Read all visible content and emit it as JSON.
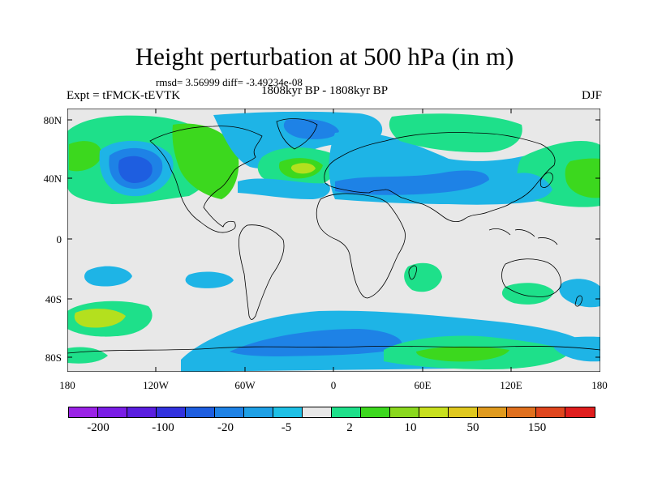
{
  "title": "Height perturbation at 500 hPa (in m)",
  "stats": "rmsd= 3.56999 diff= -3.49234e-08",
  "period": "1808kyr BP - 1808kyr BP",
  "experiment": "Expt = tFMCK-tEVTK",
  "season": "DJF",
  "lat_labels": [
    "80N",
    "40N",
    "0",
    "40S",
    "80S"
  ],
  "lon_labels": [
    "180",
    "120W",
    "60W",
    "0",
    "60E",
    "120E",
    "180"
  ],
  "colorbar": {
    "colors": [
      "#9a22e6",
      "#7a1de6",
      "#5a1ee0",
      "#3232df",
      "#1e5ee0",
      "#1e82e6",
      "#1ea0e6",
      "#1ec0e6",
      "#e8e8e8",
      "#1ee08a",
      "#3cd81e",
      "#8ad81e",
      "#c8e01e",
      "#e0c81e",
      "#e09a1e",
      "#e0701e",
      "#e0461e",
      "#e01e1e"
    ],
    "labels": [
      "-200",
      "-100",
      "-20",
      "-5",
      "2",
      "10",
      "50",
      "150"
    ]
  },
  "colors": {
    "background": "#e8e8e8",
    "blue_dark": "#1e5ee0",
    "blue_mid": "#1e82e6",
    "blue_light": "#1eb4e6",
    "green": "#1ee08a",
    "green_bright": "#3cd81e",
    "yellow_green": "#b4e01e"
  }
}
